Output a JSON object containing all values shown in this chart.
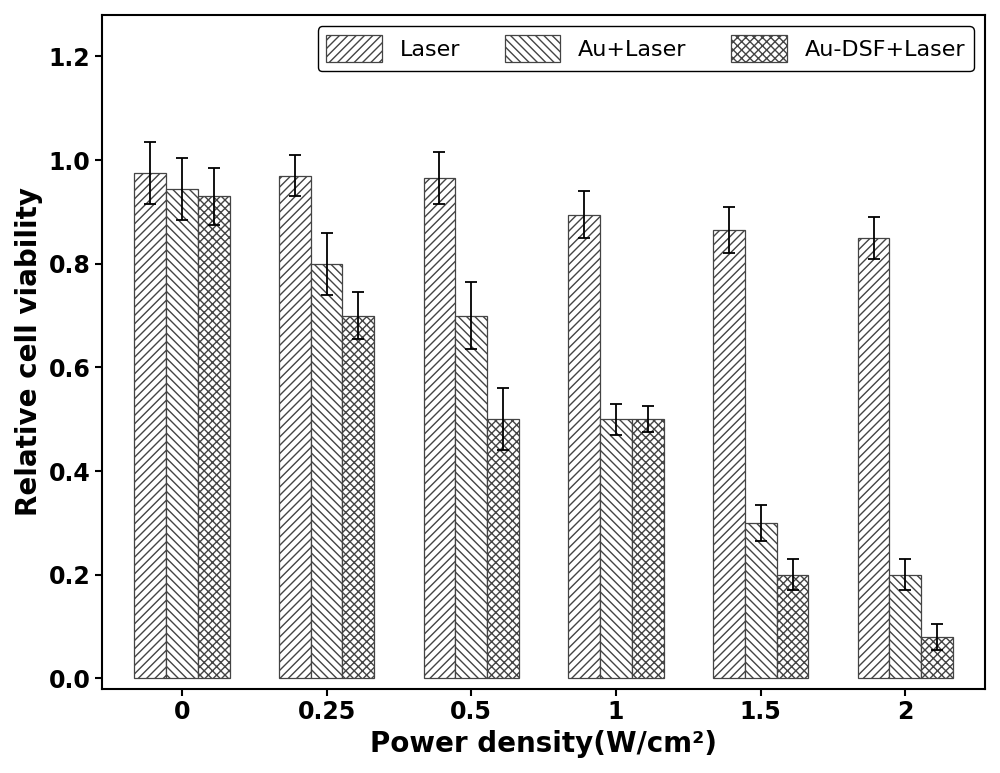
{
  "categories": [
    "0",
    "0.25",
    "0.5",
    "1",
    "1.5",
    "2"
  ],
  "series": [
    {
      "label": "Laser",
      "values": [
        0.975,
        0.97,
        0.965,
        0.895,
        0.865,
        0.85
      ],
      "errors": [
        0.06,
        0.04,
        0.05,
        0.045,
        0.045,
        0.04
      ],
      "hatch": "////",
      "facecolor": "#ffffff",
      "edgecolor": "#444444"
    },
    {
      "label": "Au+Laser",
      "values": [
        0.945,
        0.8,
        0.7,
        0.5,
        0.3,
        0.2
      ],
      "errors": [
        0.06,
        0.06,
        0.065,
        0.03,
        0.035,
        0.03
      ],
      "hatch": "\\\\\\\\",
      "facecolor": "#ffffff",
      "edgecolor": "#444444"
    },
    {
      "label": "Au-DSF+Laser",
      "values": [
        0.93,
        0.7,
        0.5,
        0.5,
        0.2,
        0.08
      ],
      "errors": [
        0.055,
        0.045,
        0.06,
        0.025,
        0.03,
        0.025
      ],
      "hatch": "xxxx",
      "facecolor": "#ffffff",
      "edgecolor": "#444444"
    }
  ],
  "ylabel": "Relative cell viability",
  "xlabel": "Power density(W/cm²)",
  "ylim": [
    -0.02,
    1.28
  ],
  "yticks": [
    0.0,
    0.2,
    0.4,
    0.6,
    0.8,
    1.0,
    1.2
  ],
  "bar_width": 0.22,
  "legend_loc": "upper right",
  "label_fontsize": 20,
  "tick_fontsize": 17,
  "legend_fontsize": 16,
  "figure_width": 10.0,
  "figure_height": 7.73
}
